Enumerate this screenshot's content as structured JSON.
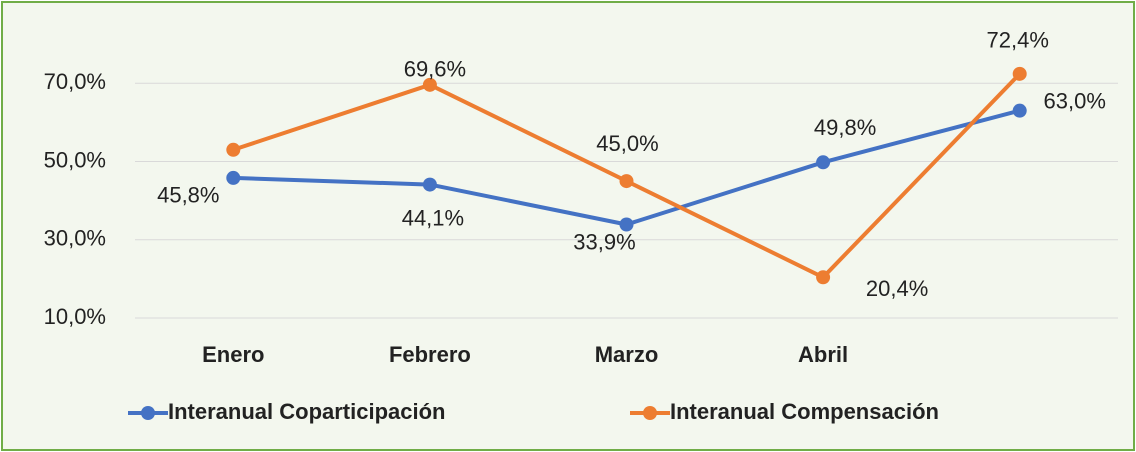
{
  "chart_data": {
    "type": "line",
    "categories": [
      "Enero",
      "Febrero",
      "Marzo",
      "Abril",
      null
    ],
    "series": [
      {
        "name": "Interanual Coparticipación",
        "color": "#4472c4",
        "values": [
          45.8,
          44.1,
          33.9,
          49.8,
          63.0
        ],
        "value_labels": [
          "45,8%",
          "44,1%",
          "33,9%",
          "49,8%",
          "63,0%"
        ]
      },
      {
        "name": "Interanual Compensación",
        "color": "#ed7d31",
        "values": [
          53,
          69.6,
          45.0,
          20.4,
          72.4
        ],
        "value_labels": [
          null,
          "69,6%",
          "45,0%",
          "20,4%",
          "72,4%"
        ]
      }
    ],
    "ylim": [
      10,
      90
    ],
    "yticks": [
      {
        "value": 10,
        "label": "10,0%"
      },
      {
        "value": 30,
        "label": "30,0%"
      },
      {
        "value": 50,
        "label": "50,0%"
      },
      {
        "value": 70,
        "label": "70,0%"
      }
    ],
    "grid": true,
    "legend": "bottom"
  }
}
